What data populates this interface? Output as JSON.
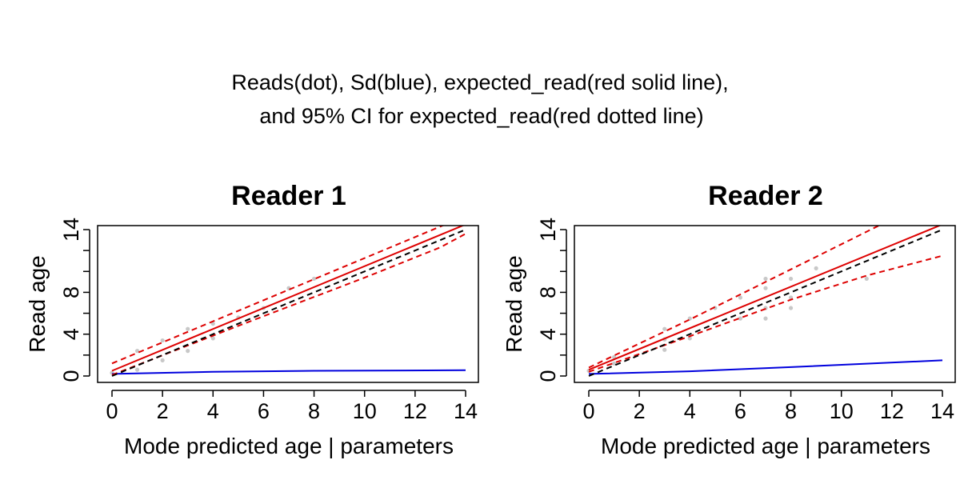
{
  "title_lines": [
    "Reads(dot), Sd(blue), expected_read(red solid line),",
    "and 95% CI for expected_read(red dotted line)"
  ],
  "colors": {
    "reads": "#c8c8c8",
    "sd": "#0000dd",
    "expected": "#dd0000",
    "ci": "#dd0000",
    "reference": "#000000"
  },
  "chart_data": [
    {
      "type": "scatter",
      "title": "Reader 1",
      "xlabel": "Mode predicted age | parameters",
      "ylabel": "Read age",
      "xlim": [
        0,
        14
      ],
      "ylim": [
        0,
        14
      ],
      "x_ticks": [
        0,
        2,
        4,
        6,
        8,
        10,
        12,
        14
      ],
      "y_ticks": [
        0,
        4,
        8,
        14
      ],
      "y_minor_ticks": [
        2,
        6,
        10,
        12
      ],
      "grid": false,
      "series": [
        {
          "kind": "points",
          "values": [
            [
              0,
              0.3
            ],
            [
              1,
              0.6
            ],
            [
              1,
              2.4
            ],
            [
              2,
              1.5
            ],
            [
              2,
              3.4
            ],
            [
              3,
              2.4
            ],
            [
              3,
              4.5
            ],
            [
              4,
              3.6
            ],
            [
              4,
              5.0
            ],
            [
              5,
              5.6
            ],
            [
              6,
              6.5
            ],
            [
              7,
              8.4
            ],
            [
              8,
              9.3
            ]
          ]
        },
        {
          "kind": "line",
          "style": "solid",
          "color_key": "sd",
          "values": [
            [
              0,
              0.2
            ],
            [
              4,
              0.4
            ],
            [
              8,
              0.5
            ],
            [
              14,
              0.55
            ]
          ]
        },
        {
          "kind": "line",
          "style": "solid",
          "color_key": "expected",
          "values": [
            [
              0,
              0.5
            ],
            [
              14,
              14.5
            ]
          ]
        },
        {
          "kind": "line",
          "style": "dashed",
          "color_key": "ci",
          "values": [
            [
              0,
              1.2
            ],
            [
              14,
              15.3
            ]
          ]
        },
        {
          "kind": "line",
          "style": "dashed",
          "color_key": "ci",
          "values": [
            [
              0,
              0.1
            ],
            [
              5,
              4.8
            ],
            [
              10,
              9.4
            ],
            [
              13,
              12.3
            ],
            [
              14,
              13.6
            ]
          ]
        },
        {
          "kind": "line",
          "style": "dashed",
          "color_key": "reference",
          "values": [
            [
              0,
              0
            ],
            [
              14,
              14
            ]
          ]
        }
      ]
    },
    {
      "type": "scatter",
      "title": "Reader 2",
      "xlabel": "Mode predicted age | parameters",
      "ylabel": "Read age",
      "xlim": [
        0,
        14
      ],
      "ylim": [
        0,
        14
      ],
      "x_ticks": [
        0,
        2,
        4,
        6,
        8,
        10,
        12,
        14
      ],
      "y_ticks": [
        0,
        4,
        8,
        14
      ],
      "y_minor_ticks": [
        2,
        6,
        10,
        12
      ],
      "grid": false,
      "series": [
        {
          "kind": "points",
          "values": [
            [
              0,
              0.5
            ],
            [
              1,
              1.2
            ],
            [
              1,
              1.8
            ],
            [
              3,
              2.5
            ],
            [
              3,
              3.5
            ],
            [
              3,
              4.5
            ],
            [
              4,
              3.6
            ],
            [
              4,
              5.5
            ],
            [
              5,
              6.5
            ],
            [
              6,
              5.5
            ],
            [
              6,
              7.5
            ],
            [
              7,
              5.5
            ],
            [
              7,
              6.5
            ],
            [
              7,
              8.4
            ],
            [
              7,
              9.3
            ],
            [
              8,
              6.5
            ],
            [
              8,
              7.5
            ],
            [
              8,
              9.3
            ],
            [
              9,
              10.3
            ],
            [
              11,
              9.3
            ]
          ]
        },
        {
          "kind": "line",
          "style": "solid",
          "color_key": "sd",
          "values": [
            [
              0,
              0.2
            ],
            [
              4,
              0.45
            ],
            [
              8,
              0.85
            ],
            [
              14,
              1.5
            ]
          ]
        },
        {
          "kind": "line",
          "style": "solid",
          "color_key": "expected",
          "values": [
            [
              0,
              0.6
            ],
            [
              14,
              14.5
            ]
          ]
        },
        {
          "kind": "line",
          "style": "dashed",
          "color_key": "ci",
          "values": [
            [
              0,
              0.8
            ],
            [
              4,
              5.4
            ],
            [
              8,
              10.2
            ],
            [
              11,
              13.8
            ],
            [
              12,
              15
            ]
          ]
        },
        {
          "kind": "line",
          "style": "dashed",
          "color_key": "ci",
          "values": [
            [
              0,
              0.4
            ],
            [
              4,
              3.8
            ],
            [
              8,
              7.3
            ],
            [
              11,
              9.6
            ],
            [
              14,
              11.5
            ]
          ]
        },
        {
          "kind": "line",
          "style": "dashed",
          "color_key": "reference",
          "values": [
            [
              0,
              0
            ],
            [
              14,
              14
            ]
          ]
        }
      ]
    }
  ]
}
